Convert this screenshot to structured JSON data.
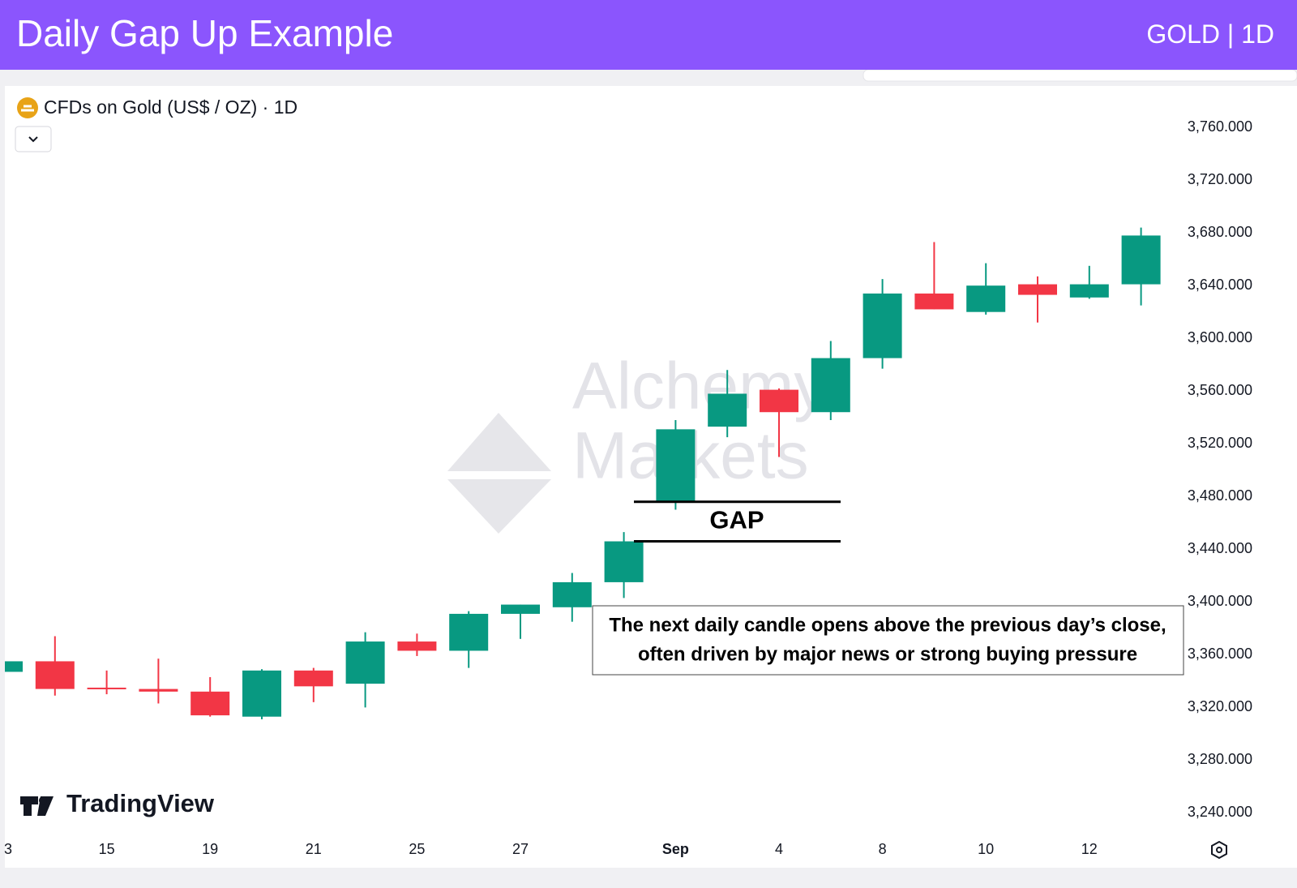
{
  "header": {
    "title": "Daily Gap Up Example",
    "tag": "GOLD | 1D"
  },
  "chart_data": {
    "type": "candlestick",
    "title": "CFDs on Gold (US$ / OZ) · 1D",
    "watermark": [
      "Alchemy",
      "Markets"
    ],
    "brand": "TradingView",
    "categories": [
      "3",
      null,
      "15",
      null,
      "19",
      null,
      "21",
      null,
      "25",
      null,
      "27",
      null,
      null,
      "Sep",
      null,
      "4",
      null,
      "8",
      null,
      "10",
      null,
      "12",
      null
    ],
    "open": [
      3347,
      3355,
      3335,
      3334,
      3332,
      3313,
      3348,
      3338,
      3370,
      3363,
      3391,
      3396,
      3415,
      3476,
      3533,
      3561,
      3544,
      3585,
      3634,
      3620,
      3641,
      3631,
      3641
    ],
    "high": [
      3356,
      3374,
      3348,
      3357,
      3343,
      3349,
      3350,
      3377,
      3376,
      3393,
      3398,
      3422,
      3453,
      3538,
      3576,
      3562,
      3598,
      3645,
      3673,
      3657,
      3647,
      3655,
      3684
    ],
    "low": [
      3346,
      3329,
      3330,
      3323,
      3313,
      3311,
      3324,
      3320,
      3359,
      3350,
      3372,
      3385,
      3403,
      3470,
      3525,
      3510,
      3538,
      3577,
      3622,
      3618,
      3612,
      3630,
      3625
    ],
    "close": [
      3355,
      3334,
      3334,
      3332,
      3314,
      3348,
      3336,
      3370,
      3363,
      3391,
      3398,
      3415,
      3446,
      3531,
      3558,
      3544,
      3585,
      3634,
      3622,
      3640,
      3633,
      3641,
      3678
    ],
    "up_color": "#089981",
    "down_color": "#f23645",
    "ylim": [
      3223,
      3789
    ],
    "yticks": [
      {
        "value": 3760,
        "label": "3,760.000"
      },
      {
        "value": 3720,
        "label": "3,720.000"
      },
      {
        "value": 3680,
        "label": "3,680.000"
      },
      {
        "value": 3640,
        "label": "3,640.000"
      },
      {
        "value": 3600,
        "label": "3,600.000"
      },
      {
        "value": 3560,
        "label": "3,560.000"
      },
      {
        "value": 3520,
        "label": "3,520.000"
      },
      {
        "value": 3480,
        "label": "3,480.000"
      },
      {
        "value": 3440,
        "label": "3,440.000"
      },
      {
        "value": 3400,
        "label": "3,400.000"
      },
      {
        "value": 3360,
        "label": "3,360.000"
      },
      {
        "value": 3320,
        "label": "3,320.000"
      },
      {
        "value": 3280,
        "label": "3,280.000"
      },
      {
        "value": 3240,
        "label": "3,240.000"
      }
    ],
    "grid": false,
    "gap": {
      "label": "GAP",
      "from": 3446,
      "to": 3476
    },
    "annotation": [
      "The next daily candle opens above the previous day’s close,",
      "often driven by major news or strong buying pressure"
    ]
  }
}
